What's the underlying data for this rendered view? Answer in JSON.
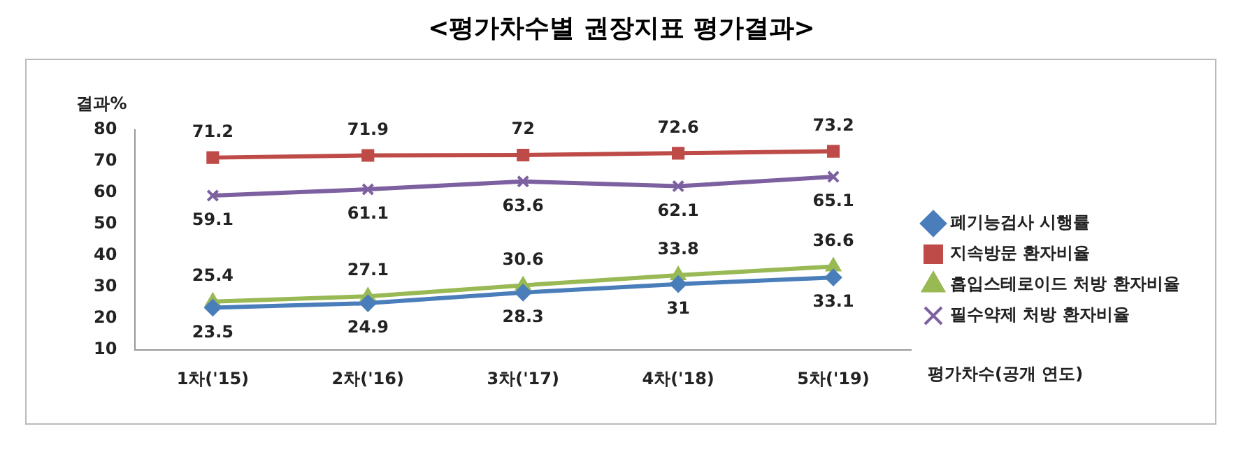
{
  "chart_data": {
    "type": "line",
    "title": "<평가차수별 권장지표 평가결과>",
    "ylabel": "결과%",
    "xlabel": "평가차수(공개 연도)",
    "categories": [
      "1차('15)",
      "2차('16)",
      "3차('17)",
      "4차('18)",
      "5차('19)"
    ],
    "series": [
      {
        "name": "폐기능검사 시행률",
        "color": "#4a7ebb",
        "marker": "diamond",
        "values": [
          23.5,
          24.9,
          28.3,
          31,
          33.1
        ]
      },
      {
        "name": "지속방문 환자비율",
        "color": "#be4b48",
        "marker": "square",
        "values": [
          71.2,
          71.9,
          72,
          72.6,
          73.2
        ]
      },
      {
        "name": "흡입스테로이드 처방 환자비율",
        "color": "#98b954",
        "marker": "triangle",
        "values": [
          25.4,
          27.1,
          30.6,
          33.8,
          36.6
        ]
      },
      {
        "name": "필수약제 처방 환자비율",
        "color": "#7d60a0",
        "marker": "cross",
        "values": [
          59.1,
          61.1,
          63.6,
          62.1,
          65.1
        ]
      }
    ],
    "ylim": [
      10,
      80
    ],
    "yticks": [
      10,
      20,
      30,
      40,
      50,
      60,
      70,
      80
    ],
    "grid": false,
    "legend": "right",
    "data_labels": true
  }
}
